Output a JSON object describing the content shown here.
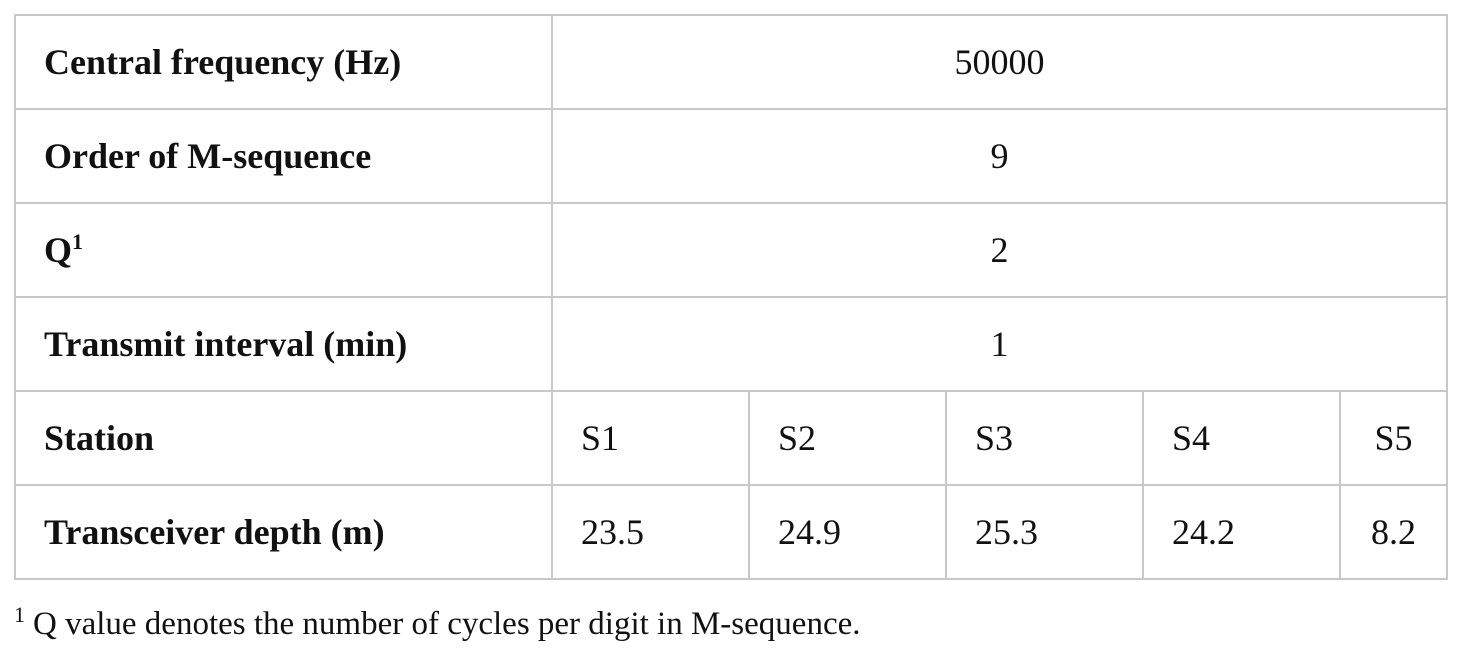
{
  "table": {
    "rows": [
      {
        "label": "Central frequency (Hz)",
        "value": "50000"
      },
      {
        "label": "Order of M-sequence",
        "value": "9"
      },
      {
        "label": "Q",
        "label_sup": "1",
        "value": "2"
      },
      {
        "label": "Transmit interval (min)",
        "value": "1"
      }
    ],
    "station": {
      "label": "Station",
      "values": [
        "S1",
        "S2",
        "S3",
        "S4",
        "S5"
      ]
    },
    "depth": {
      "label": "Transceiver depth (m)",
      "values": [
        "23.5",
        "24.9",
        "25.3",
        "24.2",
        "8.2"
      ]
    }
  },
  "footnote": {
    "marker": "1",
    "text": "Q value denotes the number of cycles per digit in M-sequence."
  }
}
